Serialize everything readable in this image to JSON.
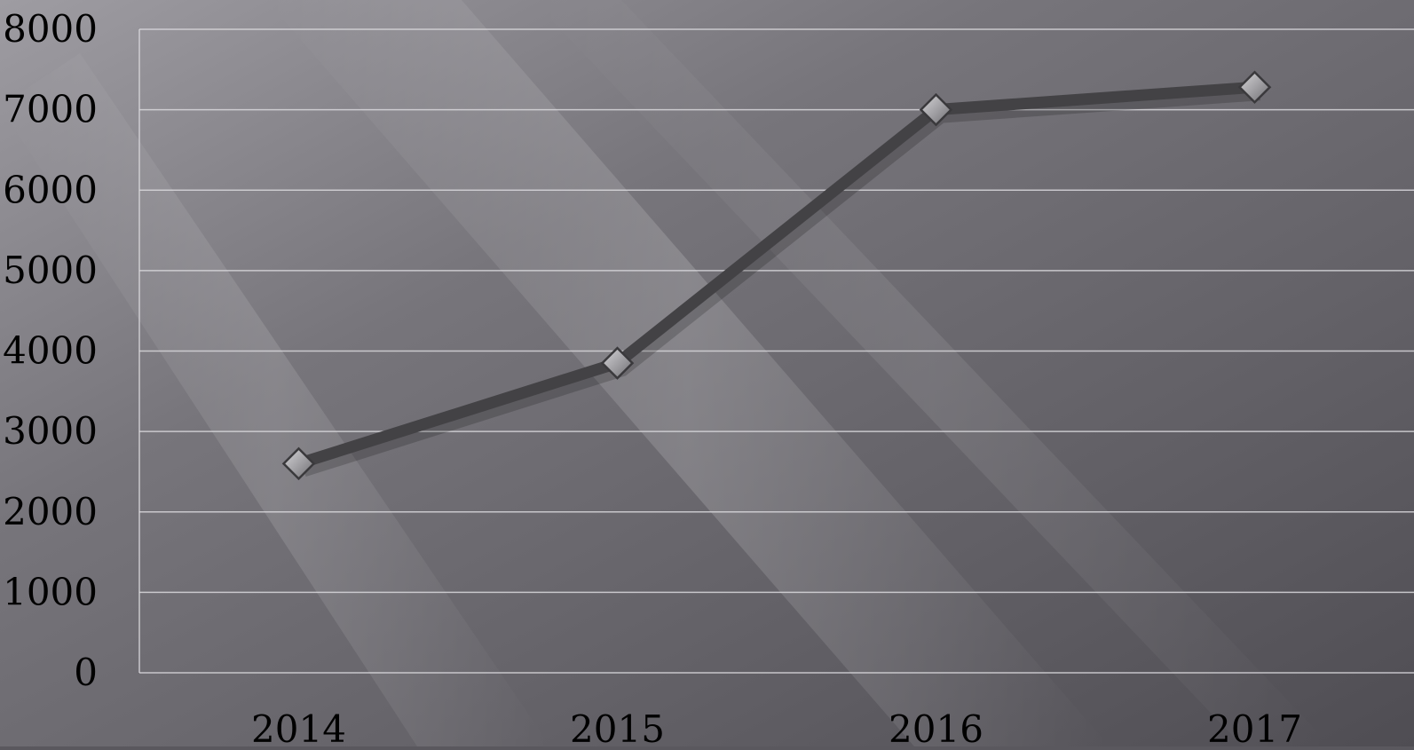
{
  "chart_data": {
    "type": "line",
    "title": "",
    "xlabel": "",
    "ylabel": "",
    "categories": [
      "2014",
      "2015",
      "2016",
      "2017"
    ],
    "series": [
      {
        "values": [
          2600,
          3850,
          7000,
          7280
        ]
      }
    ],
    "ylim": [
      0,
      8000
    ],
    "yticks": [
      "0",
      "1000",
      "2000",
      "3000",
      "4000",
      "5000",
      "6000",
      "7000",
      "8000"
    ],
    "grid": true,
    "legend": "none",
    "colors": {
      "line": "#434245",
      "marker_fill": "#a9a8ab",
      "marker_stroke": "#3a393c",
      "grid": "#d9d8dc",
      "text": "#000000"
    }
  }
}
